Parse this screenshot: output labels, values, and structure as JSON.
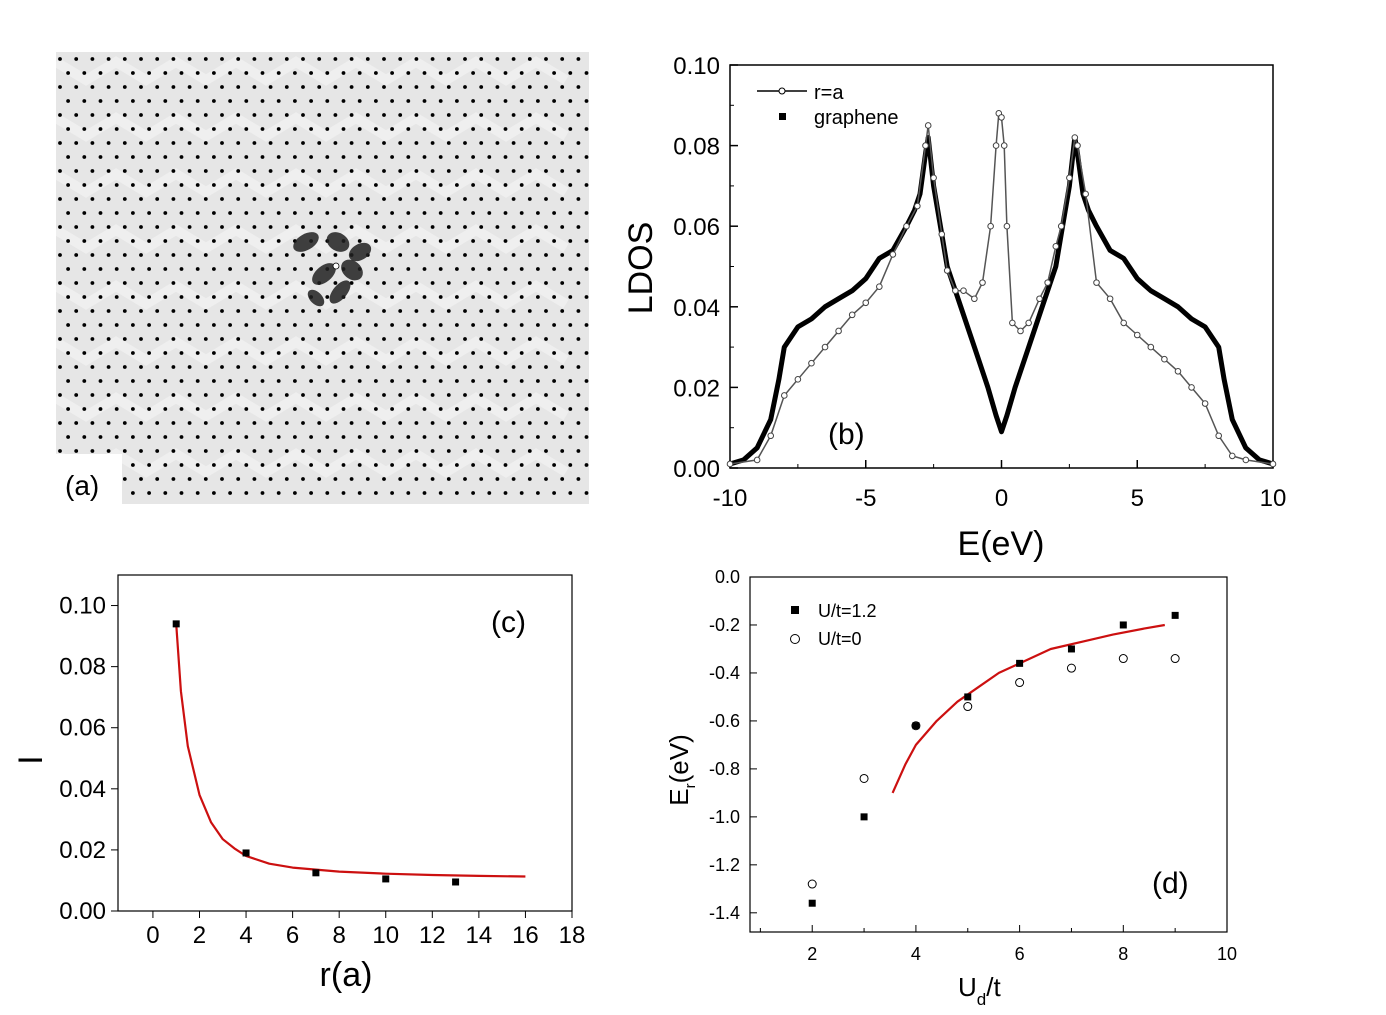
{
  "chart_data": [
    {
      "panel": "a",
      "type": "heatmap",
      "label": "(a)",
      "description_hidden": true
    },
    {
      "panel": "b",
      "type": "line",
      "label": "(b)",
      "xlabel": "E(eV)",
      "ylabel": "LDOS",
      "xlim": [
        -10,
        10
      ],
      "ylim": [
        0,
        0.1
      ],
      "xticks": [
        "-10",
        "-5",
        "0",
        "5",
        "10"
      ],
      "yticks": [
        "0.00",
        "0.02",
        "0.04",
        "0.06",
        "0.08",
        "0.10"
      ],
      "legend": {
        "placement": "top-left",
        "entries": [
          "r=a",
          "graphene"
        ]
      },
      "series": [
        {
          "name": "r=a",
          "style": "open-circles",
          "x": [
            -10,
            -9,
            -8.5,
            -8,
            -7.5,
            -7,
            -6.5,
            -6,
            -5.5,
            -5,
            -4.5,
            -4,
            -3.5,
            -3.1,
            -2.8,
            -2.7,
            -2.5,
            -2.2,
            -2,
            -1.7,
            -1.4,
            -1,
            -0.7,
            -0.4,
            -0.2,
            -0.1,
            0,
            0.1,
            0.2,
            0.4,
            0.7,
            1,
            1.4,
            1.7,
            2,
            2.2,
            2.5,
            2.7,
            2.8,
            3.1,
            3.5,
            4,
            4.5,
            5,
            5.5,
            6,
            6.5,
            7,
            7.5,
            8,
            8.5,
            9,
            10
          ],
          "values": [
            0.001,
            0.002,
            0.008,
            0.018,
            0.022,
            0.026,
            0.03,
            0.034,
            0.038,
            0.041,
            0.045,
            0.053,
            0.06,
            0.065,
            0.08,
            0.085,
            0.072,
            0.058,
            0.049,
            0.044,
            0.044,
            0.042,
            0.046,
            0.06,
            0.08,
            0.088,
            0.087,
            0.08,
            0.06,
            0.036,
            0.034,
            0.036,
            0.042,
            0.046,
            0.055,
            0.06,
            0.072,
            0.082,
            0.08,
            0.068,
            0.046,
            0.042,
            0.036,
            0.033,
            0.03,
            0.027,
            0.024,
            0.02,
            0.016,
            0.008,
            0.003,
            0.002,
            0.001
          ]
        },
        {
          "name": "graphene",
          "style": "filled-squares",
          "x": [
            -10,
            -9.5,
            -9,
            -8.5,
            -8.2,
            -8,
            -7.5,
            -7,
            -6.5,
            -6,
            -5.5,
            -5,
            -4.5,
            -4,
            -3.5,
            -3.2,
            -3,
            -2.8,
            -2.7,
            -2.5,
            -2.2,
            -2,
            -1.5,
            -1,
            -0.5,
            -0.2,
            0,
            0.2,
            0.5,
            1,
            1.5,
            2,
            2.2,
            2.5,
            2.7,
            2.8,
            3,
            3.2,
            3.5,
            4,
            4.5,
            5,
            5.5,
            6,
            6.5,
            7,
            7.5,
            8,
            8.2,
            8.5,
            9,
            9.5,
            10
          ],
          "values": [
            0.001,
            0.002,
            0.005,
            0.012,
            0.022,
            0.03,
            0.035,
            0.037,
            0.04,
            0.042,
            0.044,
            0.047,
            0.052,
            0.054,
            0.06,
            0.064,
            0.068,
            0.078,
            0.082,
            0.07,
            0.058,
            0.05,
            0.04,
            0.03,
            0.02,
            0.013,
            0.009,
            0.013,
            0.02,
            0.03,
            0.04,
            0.05,
            0.058,
            0.07,
            0.082,
            0.078,
            0.068,
            0.064,
            0.06,
            0.054,
            0.052,
            0.047,
            0.044,
            0.042,
            0.04,
            0.037,
            0.035,
            0.03,
            0.022,
            0.012,
            0.005,
            0.002,
            0.001
          ]
        }
      ]
    },
    {
      "panel": "c",
      "type": "scatter",
      "label": "(c)",
      "xlabel": "r(a)",
      "ylabel": "I",
      "xlim": [
        -1.5,
        18
      ],
      "ylim": [
        0,
        0.11
      ],
      "xticks": [
        "0",
        "2",
        "4",
        "6",
        "8",
        "10",
        "12",
        "14",
        "16",
        "18"
      ],
      "yticks": [
        "0.00",
        "0.02",
        "0.04",
        "0.06",
        "0.08",
        "0.10"
      ],
      "series": [
        {
          "name": "data",
          "style": "filled-squares",
          "x": [
            1,
            4,
            7,
            10,
            13
          ],
          "values": [
            0.094,
            0.019,
            0.0125,
            0.0105,
            0.0095
          ]
        },
        {
          "name": "fit",
          "style": "red-line",
          "x": [
            1,
            1.2,
            1.5,
            2,
            2.5,
            3,
            3.5,
            4,
            5,
            6,
            8,
            10,
            12,
            14,
            16
          ],
          "values": [
            0.094,
            0.072,
            0.054,
            0.038,
            0.029,
            0.0235,
            0.0205,
            0.018,
            0.0155,
            0.0142,
            0.0129,
            0.0122,
            0.0118,
            0.0115,
            0.0113
          ]
        }
      ]
    },
    {
      "panel": "d",
      "type": "scatter",
      "label": "(d)",
      "xlabel": "U",
      "xlabel_sub": "d",
      "xlabel_suffix": "/t",
      "ylabel": "E",
      "ylabel_sub": "r",
      "ylabel_suffix": "(eV)",
      "xlim": [
        0.8,
        10
      ],
      "ylim": [
        -1.48,
        0
      ],
      "xticks": [
        "2",
        "4",
        "6",
        "8",
        "10"
      ],
      "yticks": [
        "0.0",
        "-0.2",
        "-0.4",
        "-0.6",
        "-0.8",
        "-1.0",
        "-1.2",
        "-1.4"
      ],
      "legend": {
        "placement": "top-left",
        "entries": [
          "U/t=1.2",
          "U/t=0"
        ]
      },
      "series": [
        {
          "name": "U/t=1.2",
          "style": "filled-squares",
          "x": [
            2,
            3,
            4,
            5,
            6,
            7,
            8,
            9
          ],
          "values": [
            -1.36,
            -1.0,
            -0.62,
            -0.5,
            -0.36,
            -0.3,
            -0.2,
            -0.16
          ]
        },
        {
          "name": "U/t=0",
          "style": "open-circles",
          "x": [
            2,
            3,
            4,
            5,
            6,
            7,
            8,
            9
          ],
          "values": [
            -1.28,
            -0.84,
            -0.62,
            -0.54,
            -0.44,
            -0.38,
            -0.34,
            -0.34
          ]
        },
        {
          "name": "fit",
          "style": "red-line",
          "x": [
            3.55,
            3.8,
            4,
            4.4,
            4.8,
            5.2,
            5.6,
            6,
            6.6,
            7.2,
            7.8,
            8.4,
            8.8
          ],
          "values": [
            -0.9,
            -0.78,
            -0.7,
            -0.6,
            -0.52,
            -0.46,
            -0.4,
            -0.36,
            -0.3,
            -0.27,
            -0.24,
            -0.215,
            -0.2
          ]
        }
      ]
    }
  ]
}
